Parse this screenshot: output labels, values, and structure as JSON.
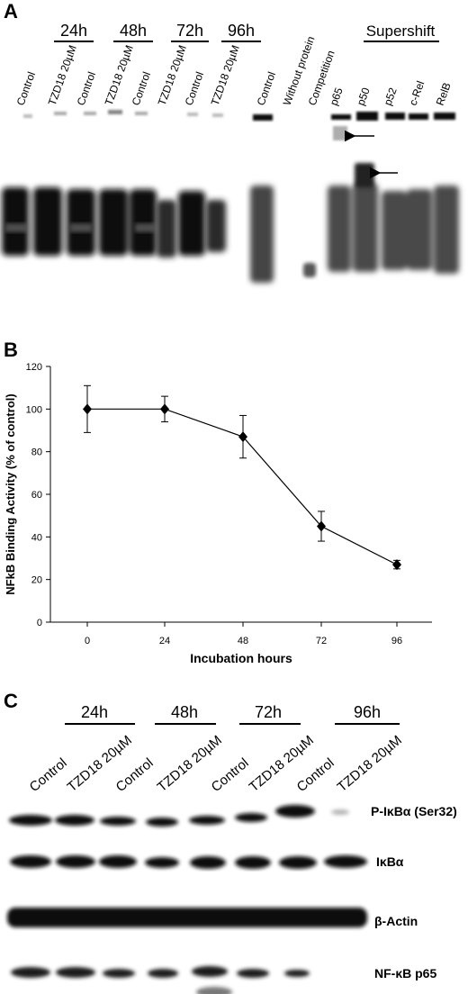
{
  "panelA": {
    "letter": "A",
    "time_groups": [
      "24h",
      "48h",
      "72h",
      "96h"
    ],
    "supershift_label": "Supershift",
    "lanes_left": [
      "Control",
      "TZD18 20µM",
      "Control",
      "TZD18 20µM",
      "Control",
      "TZD18 20µM",
      "Control",
      "TZD18 20µM"
    ],
    "lanes_right": [
      "Control",
      "Without protein",
      "Competition",
      "p65",
      "p50",
      "p52",
      "c-Rel",
      "RelB"
    ]
  },
  "panelB": {
    "letter": "B",
    "chart_data": {
      "type": "line",
      "xlabel": "Incubation hours",
      "ylabel": "NFkB Binding Activity (% of control)",
      "x": [
        0,
        24,
        48,
        72,
        96
      ],
      "xticks": [
        "0",
        "24",
        "48",
        "72",
        "96"
      ],
      "ylim": [
        0,
        120
      ],
      "yticks": [
        "0",
        "20",
        "40",
        "60",
        "80",
        "100",
        "120"
      ],
      "series": [
        {
          "values": [
            100,
            100,
            87,
            45,
            27
          ],
          "errors": [
            11,
            6,
            10,
            7,
            2
          ]
        }
      ],
      "grid": false
    }
  },
  "panelC": {
    "letter": "C",
    "time_groups": [
      "24h",
      "48h",
      "72h",
      "96h"
    ],
    "lanes": [
      "Control",
      "TZD18 20µM",
      "Control",
      "TZD18 20µM",
      "Control",
      "TZD18 20µM",
      "Control",
      "TZD18 20µM"
    ],
    "blot_labels": [
      "P-IκBα (Ser32)",
      "IκBα",
      "β-Actin",
      "NF-κB p65"
    ]
  }
}
